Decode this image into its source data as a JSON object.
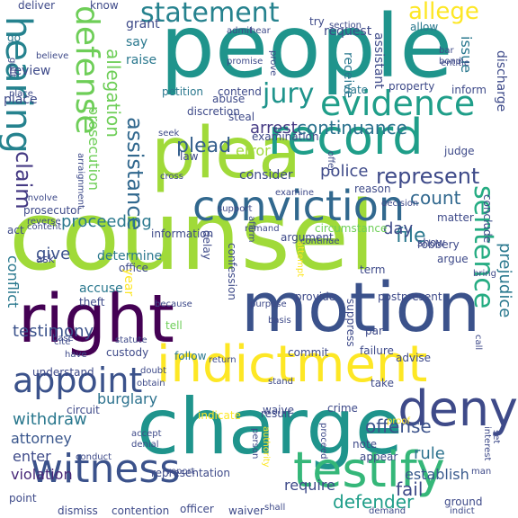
{
  "words": [
    {
      "text": "counsel",
      "color": "#a0da39",
      "rot": 0
    },
    {
      "text": "people",
      "color": "#1f948c",
      "rot": 0
    },
    {
      "text": "charge",
      "color": "#1f948c",
      "rot": 0
    },
    {
      "text": "motion",
      "color": "#3b528b",
      "rot": 0
    },
    {
      "text": "plea",
      "color": "#a0da39",
      "rot": 0
    },
    {
      "text": "right",
      "color": "#440154",
      "rot": 0
    },
    {
      "text": "indictment",
      "color": "#fde725",
      "rot": 0
    },
    {
      "text": "hearing",
      "color": "#25828e",
      "rot": 90
    },
    {
      "text": "witness",
      "color": "#3b528b",
      "rot": 0
    },
    {
      "text": "record",
      "color": "#1f9e89",
      "rot": 0
    },
    {
      "text": "conviction",
      "color": "#31688e",
      "rot": 0
    },
    {
      "text": "defense",
      "color": "#6ece58",
      "rot": 90
    },
    {
      "text": "testify",
      "color": "#35b779",
      "rot": 0
    },
    {
      "text": "deny",
      "color": "#3e4a89",
      "rot": 0
    },
    {
      "text": "jury",
      "color": "#1f948c",
      "rot": 0
    },
    {
      "text": "evidence",
      "color": "#1f9e89",
      "rot": 0
    },
    {
      "text": "appoint",
      "color": "#3b528b",
      "rot": 0
    },
    {
      "text": "statement",
      "color": "#26828e",
      "rot": 0
    },
    {
      "text": "allege",
      "color": "#fde725",
      "rot": 0
    },
    {
      "text": "sentence",
      "color": "#25ac82",
      "rot": 90
    },
    {
      "text": "represent",
      "color": "#3e4a89",
      "rot": 0
    },
    {
      "text": "assistance",
      "color": "#31688e",
      "rot": 90
    },
    {
      "text": "claim",
      "color": "#443983",
      "rot": 90
    },
    {
      "text": "defender",
      "color": "#1f9e89",
      "rot": 0
    },
    {
      "text": "offense",
      "color": "#3b528b",
      "rot": 0
    },
    {
      "text": "plead",
      "color": "#355f8d",
      "rot": 0
    },
    {
      "text": "continuance",
      "color": "#2c728e",
      "rot": 0
    },
    {
      "text": "count",
      "color": "#31688e",
      "rot": 0
    },
    {
      "text": "arrest",
      "color": "#443983",
      "rot": 0
    },
    {
      "text": "prejudice",
      "color": "#2a788e",
      "rot": 90
    },
    {
      "text": "allegation",
      "color": "#6ece58",
      "rot": 90
    },
    {
      "text": "prosecution",
      "color": "#6ece58",
      "rot": 90
    },
    {
      "text": "testimony",
      "color": "#3b528b",
      "rot": 0
    },
    {
      "text": "withdraw",
      "color": "#2a788e",
      "rot": 0
    },
    {
      "text": "police",
      "color": "#3e4a89",
      "rot": 0
    },
    {
      "text": "proceeding",
      "color": "#2a788e",
      "rot": 0
    },
    {
      "text": "error",
      "color": "#a0da39",
      "rot": 0
    },
    {
      "text": "attorney",
      "color": "#39568c",
      "rot": 0
    },
    {
      "text": "enter",
      "color": "#3e4a89",
      "rot": 0
    },
    {
      "text": "rule",
      "color": "#2c728e",
      "rot": 0
    },
    {
      "text": "file",
      "color": "#2a788e",
      "rot": 0
    },
    {
      "text": "day",
      "color": "#3e4a89",
      "rot": 0
    },
    {
      "text": "fail",
      "color": "#3e4a89",
      "rot": 0
    },
    {
      "text": "violation",
      "color": "#482878",
      "rot": 0
    },
    {
      "text": "require",
      "color": "#3e4a89",
      "rot": 0
    },
    {
      "text": "give",
      "color": "#3b528b",
      "rot": 0
    },
    {
      "text": "burglary",
      "color": "#2c728e",
      "rot": 0
    },
    {
      "text": "establish",
      "color": "#38598c",
      "rot": 0
    },
    {
      "text": "issue",
      "color": "#2a788e",
      "rot": 90
    },
    {
      "text": "request",
      "color": "#3e4a89",
      "rot": 0
    },
    {
      "text": "consider",
      "color": "#3e4a89",
      "rot": 0
    },
    {
      "text": "conflict",
      "color": "#2a788e",
      "rot": 90
    },
    {
      "text": "grant",
      "color": "#3e4a89",
      "rot": 0
    },
    {
      "text": "say",
      "color": "#2a788e",
      "rot": 0
    },
    {
      "text": "raise",
      "color": "#2a788e",
      "rot": 0
    },
    {
      "text": "review",
      "color": "#3e4a89",
      "rot": 0
    },
    {
      "text": "know",
      "color": "#3e4a89",
      "rot": 0
    },
    {
      "text": "deliver",
      "color": "#3e4a89",
      "rot": 0
    },
    {
      "text": "contend",
      "color": "#3e4a89",
      "rot": 0
    },
    {
      "text": "judge",
      "color": "#3e4a89",
      "rot": 0
    },
    {
      "text": "examination",
      "color": "#3e4a89",
      "rot": 0
    },
    {
      "text": "inform",
      "color": "#3e4a89",
      "rot": 0
    },
    {
      "text": "date",
      "color": "#2a788e",
      "rot": 0
    },
    {
      "text": "property",
      "color": "#3e4a89",
      "rot": 0
    },
    {
      "text": "petition",
      "color": "#2a788e",
      "rot": 0
    },
    {
      "text": "discretion",
      "color": "#3e4a89",
      "rot": 0
    },
    {
      "text": "abuse",
      "color": "#3e4a89",
      "rot": 0
    },
    {
      "text": "steal",
      "color": "#3e4a89",
      "rot": 0
    },
    {
      "text": "law",
      "color": "#3e4a89",
      "rot": 0
    },
    {
      "text": "cross",
      "color": "#3e4a89",
      "rot": 0
    },
    {
      "text": "seek",
      "color": "#3e4a89",
      "rot": 0
    },
    {
      "text": "examine",
      "color": "#3e4a89",
      "rot": 0
    },
    {
      "text": "reason",
      "color": "#3e4a89",
      "rot": 0
    },
    {
      "text": "try",
      "color": "#3e4a89",
      "rot": 0
    },
    {
      "text": "allow",
      "color": "#2a788e",
      "rot": 0
    },
    {
      "text": "section",
      "color": "#3e4a89",
      "rot": 0
    },
    {
      "text": "admit",
      "color": "#3e4a89",
      "rot": 0
    },
    {
      "text": "hear",
      "color": "#3e4a89",
      "rot": 0
    },
    {
      "text": "bar",
      "color": "#3e4a89",
      "rot": 0
    },
    {
      "text": "bond",
      "color": "#3e4a89",
      "rot": 0
    },
    {
      "text": "entitle",
      "color": "#3e4a89",
      "rot": 0
    },
    {
      "text": "discharge",
      "color": "#3e4a89",
      "rot": 90
    },
    {
      "text": "receive",
      "color": "#2a788e",
      "rot": 90
    },
    {
      "text": "assistant",
      "color": "#3e4a89",
      "rot": 90
    },
    {
      "text": "promise",
      "color": "#3e4a89",
      "rot": 0
    },
    {
      "text": "prove",
      "color": "#3e4a89",
      "rot": 90
    },
    {
      "text": "go",
      "color": "#2a788e",
      "rot": 0
    },
    {
      "text": "believe",
      "color": "#3e4a89",
      "rot": 0
    },
    {
      "text": "guilt",
      "color": "#3e4a89",
      "rot": 90
    },
    {
      "text": "place",
      "color": "#3e4a89",
      "rot": 0
    },
    {
      "text": "arraignment",
      "color": "#3e4a89",
      "rot": 90
    },
    {
      "text": "involve",
      "color": "#3e4a89",
      "rot": 0
    },
    {
      "text": "prosecutor",
      "color": "#3e4a89",
      "rot": 0
    },
    {
      "text": "reverse",
      "color": "#3e4a89",
      "rot": 0
    },
    {
      "text": "act",
      "color": "#3e4a89",
      "rot": 0
    },
    {
      "text": "content",
      "color": "#3e4a89",
      "rot": 0
    },
    {
      "text": "information",
      "color": "#3e4a89",
      "rot": 0
    },
    {
      "text": "remand",
      "color": "#3e4a89",
      "rot": 0
    },
    {
      "text": "circumstance",
      "color": "#6ece58",
      "rot": 0
    },
    {
      "text": "offer",
      "color": "#3e4a89",
      "rot": 90
    },
    {
      "text": "decision",
      "color": "#3e4a89",
      "rot": 0
    },
    {
      "text": "matter",
      "color": "#3e4a89",
      "rot": 0
    },
    {
      "text": "conclude",
      "color": "#3e4a89",
      "rot": 90
    },
    {
      "text": "continue",
      "color": "#3e4a89",
      "rot": 0
    },
    {
      "text": "robbery",
      "color": "#3e4a89",
      "rot": 0
    },
    {
      "text": "argument",
      "color": "#3e4a89",
      "rot": 0
    },
    {
      "text": "show",
      "color": "#3e4a89",
      "rot": 0
    },
    {
      "text": "argue",
      "color": "#3e4a89",
      "rot": 0
    },
    {
      "text": "term",
      "color": "#3e4a89",
      "rot": 0
    },
    {
      "text": "determine",
      "color": "#2a788e",
      "rot": 0
    },
    {
      "text": "ask",
      "color": "#3e4a89",
      "rot": 0
    },
    {
      "text": "support",
      "color": "#3e4a89",
      "rot": 0
    },
    {
      "text": "delay",
      "color": "#3e4a89",
      "rot": 90
    },
    {
      "text": "affirm",
      "color": "#3e4a89",
      "rot": 90
    },
    {
      "text": "attempt",
      "color": "#fde725",
      "rot": 90
    },
    {
      "text": "office",
      "color": "#3e4a89",
      "rot": 0
    },
    {
      "text": "confession",
      "color": "#3e4a89",
      "rot": 90
    },
    {
      "text": "year",
      "color": "#fde725",
      "rot": 90
    },
    {
      "text": "accuse",
      "color": "#2a788e",
      "rot": 0
    },
    {
      "text": "provide",
      "color": "#3e4a89",
      "rot": 0
    },
    {
      "text": "postpresent",
      "color": "#3e4a89",
      "rot": 0
    },
    {
      "text": "because",
      "color": "#3e4a89",
      "rot": 0
    },
    {
      "text": "purpose",
      "color": "#3e4a89",
      "rot": 0
    },
    {
      "text": "basis",
      "color": "#3e4a89",
      "rot": 0
    },
    {
      "text": "bring",
      "color": "#3e4a89",
      "rot": 0
    },
    {
      "text": "suppress",
      "color": "#3e4a89",
      "rot": 90
    },
    {
      "text": "theft",
      "color": "#3e4a89",
      "rot": 0
    },
    {
      "text": "tell",
      "color": "#6ece58",
      "rot": 0
    },
    {
      "text": "par",
      "color": "#3e4a89",
      "rot": 0
    },
    {
      "text": "base",
      "color": "#3e4a89",
      "rot": 0
    },
    {
      "text": "statute",
      "color": "#3e4a89",
      "rot": 0
    },
    {
      "text": "cite",
      "color": "#3e4a89",
      "rot": 0
    },
    {
      "text": "custody",
      "color": "#3e4a89",
      "rot": 0
    },
    {
      "text": "have",
      "color": "#3e4a89",
      "rot": 0
    },
    {
      "text": "return",
      "color": "#3e4a89",
      "rot": 0
    },
    {
      "text": "follow",
      "color": "#2a788e",
      "rot": 0
    },
    {
      "text": "understand",
      "color": "#3e4a89",
      "rot": 0
    },
    {
      "text": "commit",
      "color": "#3e4a89",
      "rot": 0
    },
    {
      "text": "failure",
      "color": "#3e4a89",
      "rot": 0
    },
    {
      "text": "advise",
      "color": "#3e4a89",
      "rot": 0
    },
    {
      "text": "call",
      "color": "#3e4a89",
      "rot": 90
    },
    {
      "text": "stand",
      "color": "#3e4a89",
      "rot": 0
    },
    {
      "text": "obtain",
      "color": "#3e4a89",
      "rot": 0
    },
    {
      "text": "doubt",
      "color": "#3e4a89",
      "rot": 0
    },
    {
      "text": "take",
      "color": "#3e4a89",
      "rot": 0
    },
    {
      "text": "circuit",
      "color": "#3e4a89",
      "rot": 0
    },
    {
      "text": "indicate",
      "color": "#fde725",
      "rot": 0
    },
    {
      "text": "result",
      "color": "#3e4a89",
      "rot": 0
    },
    {
      "text": "waive",
      "color": "#3e4a89",
      "rot": 0
    },
    {
      "text": "crime",
      "color": "#3e4a89",
      "rot": 0
    },
    {
      "text": "accept",
      "color": "#3e4a89",
      "rot": 0
    },
    {
      "text": "denial",
      "color": "#3e4a89",
      "rot": 0
    },
    {
      "text": "interest",
      "color": "#3e4a89",
      "rot": 90
    },
    {
      "text": "proof",
      "color": "#fde725",
      "rot": 0
    },
    {
      "text": "note",
      "color": "#3e4a89",
      "rot": 0
    },
    {
      "text": "appear",
      "color": "#3e4a89",
      "rot": 0
    },
    {
      "text": "set",
      "color": "#3e4a89",
      "rot": 90
    },
    {
      "text": "man",
      "color": "#3e4a89",
      "rot": 0
    },
    {
      "text": "proceed",
      "color": "#3e4a89",
      "rot": 90
    },
    {
      "text": "person",
      "color": "#3e4a89",
      "rot": 90
    },
    {
      "text": "authority",
      "color": "#fde725",
      "rot": 90
    },
    {
      "text": "conduct",
      "color": "#3e4a89",
      "rot": 0
    },
    {
      "text": "report",
      "color": "#3e4a89",
      "rot": 0
    },
    {
      "text": "representation",
      "color": "#3e4a89",
      "rot": 0
    },
    {
      "text": "point",
      "color": "#3e4a89",
      "rot": 0
    },
    {
      "text": "dismiss",
      "color": "#3e4a89",
      "rot": 0
    },
    {
      "text": "contention",
      "color": "#3e4a89",
      "rot": 0
    },
    {
      "text": "officer",
      "color": "#3e4a89",
      "rot": 0
    },
    {
      "text": "waiver",
      "color": "#3e4a89",
      "rot": 0
    },
    {
      "text": "shall",
      "color": "#3e4a89",
      "rot": 0
    },
    {
      "text": "demand",
      "color": "#3e4a89",
      "rot": 0
    },
    {
      "text": "ground",
      "color": "#3e4a89",
      "rot": 0
    },
    {
      "text": "indict",
      "color": "#3e4a89",
      "rot": 0
    },
    {
      "text": "place",
      "color": "#3e4a89",
      "rot": 0
    }
  ]
}
